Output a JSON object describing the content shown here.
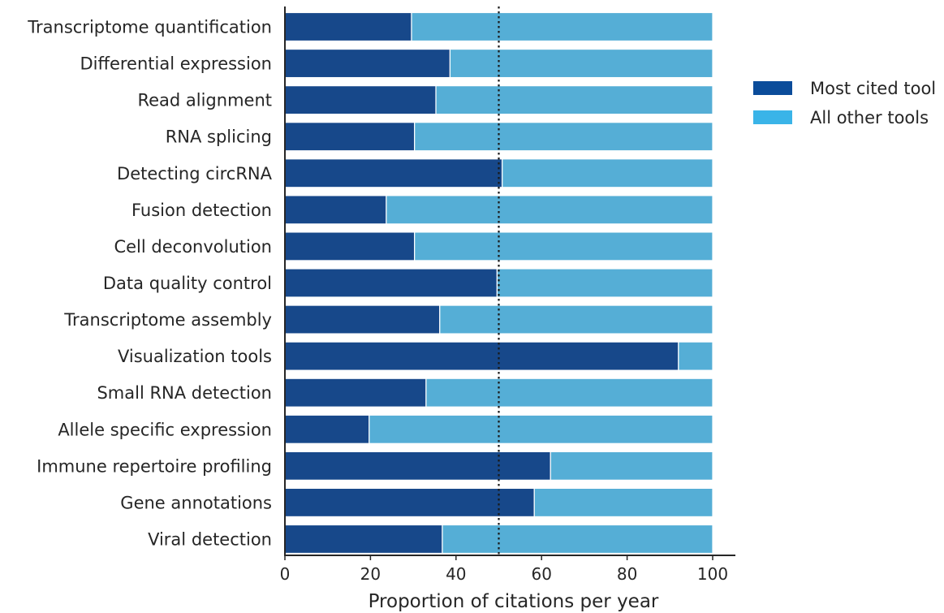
{
  "chart_data": {
    "type": "bar",
    "orientation": "horizontal",
    "stacked": true,
    "categories": [
      "Transcriptome quantification",
      "Differential expression",
      "Read alignment",
      "RNA splicing",
      "Detecting circRNA",
      "Fusion detection",
      "Cell deconvolution",
      "Data quality control",
      "Transcriptome assembly",
      "Visualization tools",
      "Small RNA detection",
      "Allele specific expression",
      "Immune repertoire profiling",
      "Gene annotations",
      "Viral detection"
    ],
    "series": [
      {
        "name": "Most cited tool",
        "color": "#17488a",
        "values": [
          29.6,
          38.6,
          35.3,
          30.3,
          50.8,
          23.7,
          30.3,
          49.6,
          36.2,
          92,
          33,
          19.7,
          62.1,
          58.3,
          36.8
        ]
      },
      {
        "name": "All other tools",
        "color": "#55aed6",
        "values": [
          70.4,
          61.4,
          64.7,
          69.7,
          49.2,
          76.3,
          69.7,
          50.4,
          63.8,
          8,
          67,
          80.3,
          37.9,
          41.7,
          63.2
        ]
      }
    ],
    "xlabel": "Proportion of citations per year",
    "ylabel": "",
    "title": "",
    "xlim": [
      0,
      100
    ],
    "xticks": [
      0,
      20,
      40,
      60,
      80,
      100
    ],
    "reference_line": {
      "x": 50,
      "style": "dotted"
    },
    "legend": {
      "placement": "right",
      "entries": [
        {
          "label": "Most cited tool",
          "color": "#0b4c9a"
        },
        {
          "label": "All other tools",
          "color": "#3ab4e8"
        }
      ]
    },
    "grid": false
  }
}
